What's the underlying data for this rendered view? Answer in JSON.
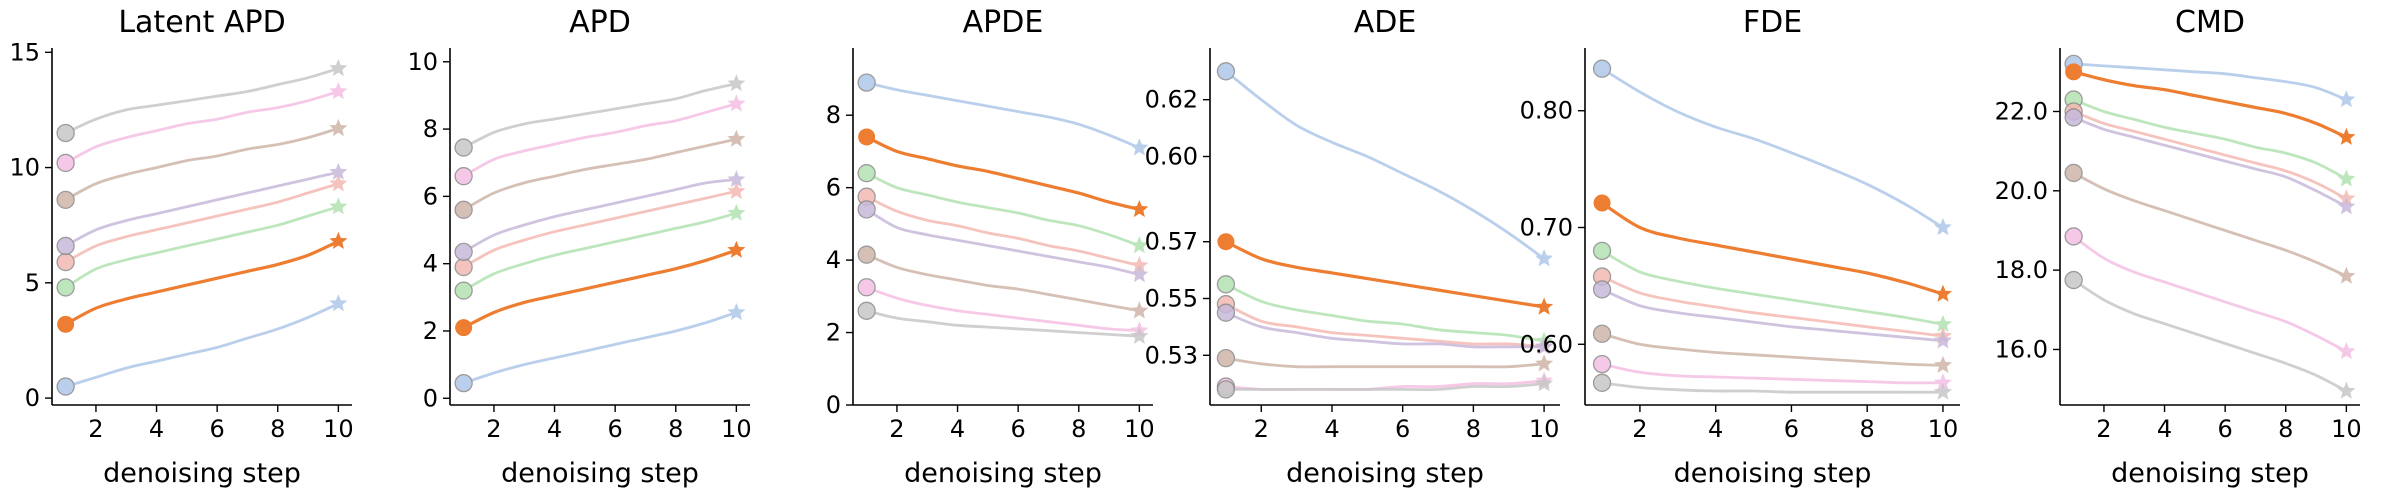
{
  "chart_data": [
    {
      "type": "line",
      "title": "Latent APD",
      "xlabel": "denoising step",
      "ylabel": "",
      "x": [
        1,
        2,
        3,
        4,
        5,
        6,
        7,
        8,
        9,
        10
      ],
      "xticks": [
        2,
        4,
        6,
        8,
        10
      ],
      "xtick_labels": [
        "2",
        "4",
        "6",
        "8",
        "10"
      ],
      "xlim": [
        0.55,
        10.45
      ],
      "ylim": [
        -0.3,
        15.1
      ],
      "yticks": [
        0,
        5,
        10,
        15
      ],
      "ytick_labels": [
        "0",
        "5",
        "10",
        "15"
      ],
      "series": [
        {
          "color": "#aec7e8",
          "highlight": false,
          "values": [
            0.5,
            0.9,
            1.3,
            1.6,
            1.9,
            2.2,
            2.6,
            3.0,
            3.5,
            4.1
          ]
        },
        {
          "color": "#ed7d31",
          "highlight": true,
          "values": [
            3.2,
            3.9,
            4.3,
            4.6,
            4.9,
            5.2,
            5.5,
            5.8,
            6.2,
            6.8
          ]
        },
        {
          "color": "#b2e2b2",
          "highlight": false,
          "values": [
            4.8,
            5.6,
            6.0,
            6.3,
            6.6,
            6.9,
            7.2,
            7.5,
            7.9,
            8.3
          ]
        },
        {
          "color": "#f4b9b2",
          "highlight": false,
          "values": [
            5.9,
            6.6,
            7.0,
            7.3,
            7.6,
            7.9,
            8.2,
            8.5,
            8.9,
            9.3
          ]
        },
        {
          "color": "#c7b9db",
          "highlight": false,
          "values": [
            6.6,
            7.3,
            7.7,
            8.0,
            8.3,
            8.6,
            8.9,
            9.2,
            9.5,
            9.8
          ]
        },
        {
          "color": "#cfb5a8",
          "highlight": false,
          "values": [
            8.6,
            9.3,
            9.7,
            10.0,
            10.3,
            10.5,
            10.8,
            11.0,
            11.3,
            11.7
          ]
        },
        {
          "color": "#f5bfe3",
          "highlight": false,
          "values": [
            10.2,
            10.9,
            11.3,
            11.6,
            11.9,
            12.1,
            12.4,
            12.6,
            12.9,
            13.3
          ]
        },
        {
          "color": "#c7c7c7",
          "highlight": false,
          "values": [
            11.5,
            12.1,
            12.5,
            12.7,
            12.9,
            13.1,
            13.3,
            13.6,
            13.9,
            14.3
          ]
        }
      ]
    },
    {
      "type": "line",
      "title": "APD",
      "xlabel": "denoising step",
      "ylabel": "",
      "x": [
        1,
        2,
        3,
        4,
        5,
        6,
        7,
        8,
        9,
        10
      ],
      "xticks": [
        2,
        4,
        6,
        8,
        10
      ],
      "xtick_labels": [
        "2",
        "4",
        "6",
        "8",
        "10"
      ],
      "xlim": [
        0.55,
        10.45
      ],
      "ylim": [
        -0.2,
        10.35
      ],
      "yticks": [
        0,
        2,
        4,
        6,
        8,
        10
      ],
      "ytick_labels": [
        "0",
        "2",
        "4",
        "6",
        "8",
        "10"
      ],
      "series": [
        {
          "color": "#aec7e8",
          "highlight": false,
          "values": [
            0.45,
            0.75,
            1.0,
            1.2,
            1.4,
            1.6,
            1.8,
            2.0,
            2.25,
            2.55
          ]
        },
        {
          "color": "#ed7d31",
          "highlight": true,
          "values": [
            2.1,
            2.55,
            2.85,
            3.05,
            3.25,
            3.45,
            3.65,
            3.85,
            4.1,
            4.4
          ]
        },
        {
          "color": "#b2e2b2",
          "highlight": false,
          "values": [
            3.2,
            3.7,
            4.0,
            4.25,
            4.45,
            4.65,
            4.85,
            5.05,
            5.25,
            5.5
          ]
        },
        {
          "color": "#f4b9b2",
          "highlight": false,
          "values": [
            3.9,
            4.4,
            4.7,
            4.95,
            5.15,
            5.35,
            5.55,
            5.75,
            5.95,
            6.15
          ]
        },
        {
          "color": "#c7b9db",
          "highlight": false,
          "values": [
            4.35,
            4.85,
            5.15,
            5.4,
            5.6,
            5.8,
            6.0,
            6.2,
            6.4,
            6.5
          ]
        },
        {
          "color": "#cfb5a8",
          "highlight": false,
          "values": [
            5.6,
            6.1,
            6.4,
            6.6,
            6.8,
            6.95,
            7.1,
            7.3,
            7.5,
            7.7
          ]
        },
        {
          "color": "#f5bfe3",
          "highlight": false,
          "values": [
            6.6,
            7.1,
            7.35,
            7.55,
            7.75,
            7.9,
            8.1,
            8.25,
            8.5,
            8.75
          ]
        },
        {
          "color": "#c7c7c7",
          "highlight": false,
          "values": [
            7.45,
            7.9,
            8.15,
            8.3,
            8.45,
            8.6,
            8.75,
            8.9,
            9.15,
            9.35
          ]
        }
      ]
    },
    {
      "type": "line",
      "title": "APDE",
      "xlabel": "denoising step",
      "ylabel": "",
      "x": [
        1,
        2,
        3,
        4,
        5,
        6,
        7,
        8,
        9,
        10
      ],
      "xticks": [
        2,
        4,
        6,
        8,
        10
      ],
      "xtick_labels": [
        "2",
        "4",
        "6",
        "8",
        "10"
      ],
      "xlim": [
        0.55,
        10.45
      ],
      "ylim": [
        0,
        9.8
      ],
      "yticks": [
        0,
        2,
        4,
        6,
        8
      ],
      "ytick_labels": [
        "0",
        "2",
        "4",
        "6",
        "8"
      ],
      "series": [
        {
          "color": "#aec7e8",
          "highlight": false,
          "values": [
            8.9,
            8.7,
            8.55,
            8.4,
            8.25,
            8.1,
            7.95,
            7.75,
            7.45,
            7.1
          ]
        },
        {
          "color": "#ed7d31",
          "highlight": true,
          "values": [
            7.4,
            7.0,
            6.8,
            6.6,
            6.45,
            6.25,
            6.05,
            5.85,
            5.6,
            5.4
          ]
        },
        {
          "color": "#b2e2b2",
          "highlight": false,
          "values": [
            6.4,
            6.0,
            5.8,
            5.6,
            5.45,
            5.3,
            5.1,
            4.95,
            4.7,
            4.4
          ]
        },
        {
          "color": "#f4b9b2",
          "highlight": false,
          "values": [
            5.75,
            5.35,
            5.1,
            4.95,
            4.75,
            4.6,
            4.4,
            4.25,
            4.05,
            3.85
          ]
        },
        {
          "color": "#c7b9db",
          "highlight": false,
          "values": [
            5.4,
            4.9,
            4.7,
            4.55,
            4.4,
            4.25,
            4.1,
            3.95,
            3.8,
            3.6
          ]
        },
        {
          "color": "#cfb5a8",
          "highlight": false,
          "values": [
            4.15,
            3.8,
            3.6,
            3.45,
            3.3,
            3.2,
            3.05,
            2.9,
            2.75,
            2.6
          ]
        },
        {
          "color": "#f5bfe3",
          "highlight": false,
          "values": [
            3.25,
            2.95,
            2.75,
            2.6,
            2.5,
            2.4,
            2.3,
            2.2,
            2.1,
            2.05
          ]
        },
        {
          "color": "#c7c7c7",
          "highlight": false,
          "values": [
            2.6,
            2.4,
            2.3,
            2.2,
            2.15,
            2.1,
            2.05,
            2.0,
            1.95,
            1.9
          ]
        }
      ]
    },
    {
      "type": "line",
      "title": "ADE",
      "xlabel": "denoising step",
      "ylabel": "",
      "x": [
        1,
        2,
        3,
        4,
        5,
        6,
        7,
        8,
        9,
        10
      ],
      "xticks": [
        2,
        4,
        6,
        8,
        10
      ],
      "xtick_labels": [
        "2",
        "4",
        "6",
        "8",
        "10"
      ],
      "xlim": [
        0.55,
        10.45
      ],
      "ylim": [
        0.5125,
        0.6375
      ],
      "yticks": [
        0.53,
        0.55,
        0.57,
        0.6,
        0.62
      ],
      "ytick_labels": [
        "0.53",
        "0.55",
        "0.57",
        "0.60",
        "0.62"
      ],
      "series": [
        {
          "color": "#aec7e8",
          "highlight": false,
          "values": [
            0.63,
            0.62,
            0.611,
            0.605,
            0.6,
            0.594,
            0.588,
            0.581,
            0.573,
            0.564
          ]
        },
        {
          "color": "#ed7d31",
          "highlight": true,
          "values": [
            0.57,
            0.564,
            0.561,
            0.559,
            0.557,
            0.555,
            0.553,
            0.551,
            0.549,
            0.547
          ]
        },
        {
          "color": "#b2e2b2",
          "highlight": false,
          "values": [
            0.555,
            0.549,
            0.546,
            0.544,
            0.542,
            0.541,
            0.539,
            0.538,
            0.537,
            0.535
          ]
        },
        {
          "color": "#f4b9b2",
          "highlight": false,
          "values": [
            0.548,
            0.542,
            0.54,
            0.538,
            0.537,
            0.536,
            0.535,
            0.534,
            0.534,
            0.533
          ]
        },
        {
          "color": "#c7b9db",
          "highlight": false,
          "values": [
            0.545,
            0.54,
            0.538,
            0.536,
            0.535,
            0.534,
            0.534,
            0.533,
            0.533,
            0.533
          ]
        },
        {
          "color": "#cfb5a8",
          "highlight": false,
          "values": [
            0.529,
            0.527,
            0.526,
            0.526,
            0.526,
            0.526,
            0.526,
            0.526,
            0.526,
            0.527
          ]
        },
        {
          "color": "#f5bfe3",
          "highlight": false,
          "values": [
            0.519,
            0.518,
            0.518,
            0.518,
            0.518,
            0.519,
            0.519,
            0.52,
            0.52,
            0.521
          ]
        },
        {
          "color": "#c7c7c7",
          "highlight": false,
          "values": [
            0.518,
            0.518,
            0.518,
            0.518,
            0.518,
            0.518,
            0.518,
            0.519,
            0.519,
            0.52
          ]
        }
      ]
    },
    {
      "type": "line",
      "title": "FDE",
      "xlabel": "denoising step",
      "ylabel": "",
      "x": [
        1,
        2,
        3,
        4,
        5,
        6,
        7,
        8,
        9,
        10
      ],
      "xticks": [
        2,
        4,
        6,
        8,
        10
      ],
      "xtick_labels": [
        "2",
        "4",
        "6",
        "8",
        "10"
      ],
      "xlim": [
        0.55,
        10.45
      ],
      "ylim": [
        0.548,
        0.852
      ],
      "yticks": [
        0.6,
        0.7,
        0.8
      ],
      "ytick_labels": [
        "0.60",
        "0.70",
        "0.80"
      ],
      "series": [
        {
          "color": "#aec7e8",
          "highlight": false,
          "values": [
            0.836,
            0.816,
            0.799,
            0.786,
            0.776,
            0.764,
            0.751,
            0.737,
            0.72,
            0.7
          ]
        },
        {
          "color": "#ed7d31",
          "highlight": true,
          "values": [
            0.721,
            0.7,
            0.691,
            0.685,
            0.679,
            0.673,
            0.667,
            0.661,
            0.653,
            0.643
          ]
        },
        {
          "color": "#b2e2b2",
          "highlight": false,
          "values": [
            0.68,
            0.662,
            0.654,
            0.648,
            0.643,
            0.638,
            0.633,
            0.628,
            0.623,
            0.617
          ]
        },
        {
          "color": "#f4b9b2",
          "highlight": false,
          "values": [
            0.658,
            0.644,
            0.637,
            0.632,
            0.627,
            0.623,
            0.619,
            0.615,
            0.611,
            0.607
          ]
        },
        {
          "color": "#c7b9db",
          "highlight": false,
          "values": [
            0.647,
            0.633,
            0.627,
            0.623,
            0.619,
            0.615,
            0.612,
            0.609,
            0.606,
            0.603
          ]
        },
        {
          "color": "#cfb5a8",
          "highlight": false,
          "values": [
            0.609,
            0.6,
            0.596,
            0.593,
            0.591,
            0.589,
            0.587,
            0.585,
            0.583,
            0.582
          ]
        },
        {
          "color": "#f5bfe3",
          "highlight": false,
          "values": [
            0.583,
            0.576,
            0.573,
            0.572,
            0.571,
            0.57,
            0.569,
            0.568,
            0.567,
            0.567
          ]
        },
        {
          "color": "#c7c7c7",
          "highlight": false,
          "values": [
            0.567,
            0.563,
            0.561,
            0.56,
            0.56,
            0.559,
            0.559,
            0.559,
            0.559,
            0.559
          ]
        }
      ]
    },
    {
      "type": "line",
      "title": "CMD",
      "xlabel": "denoising step",
      "ylabel": "",
      "x": [
        1,
        2,
        3,
        4,
        5,
        6,
        7,
        8,
        9,
        10
      ],
      "xticks": [
        2,
        4,
        6,
        8,
        10
      ],
      "xtick_labels": [
        "2",
        "4",
        "6",
        "8",
        "10"
      ],
      "xlim": [
        0.55,
        10.45
      ],
      "ylim": [
        14.6,
        23.55
      ],
      "yticks": [
        16,
        18,
        20,
        22
      ],
      "ytick_labels": [
        "16.0",
        "18.0",
        "20.0",
        "22.0"
      ],
      "series": [
        {
          "color": "#aec7e8",
          "highlight": false,
          "values": [
            23.2,
            23.15,
            23.1,
            23.05,
            23.0,
            22.95,
            22.85,
            22.75,
            22.6,
            22.3
          ]
        },
        {
          "color": "#ed7d31",
          "highlight": true,
          "values": [
            23.0,
            22.8,
            22.65,
            22.55,
            22.4,
            22.25,
            22.1,
            21.95,
            21.7,
            21.35
          ]
        },
        {
          "color": "#b2e2b2",
          "highlight": false,
          "values": [
            22.3,
            22.0,
            21.8,
            21.6,
            21.45,
            21.3,
            21.1,
            20.95,
            20.7,
            20.3
          ]
        },
        {
          "color": "#f4b9b2",
          "highlight": false,
          "values": [
            22.0,
            21.7,
            21.5,
            21.3,
            21.1,
            20.9,
            20.7,
            20.5,
            20.2,
            19.8
          ]
        },
        {
          "color": "#c7b9db",
          "highlight": false,
          "values": [
            21.85,
            21.55,
            21.35,
            21.15,
            20.95,
            20.75,
            20.55,
            20.35,
            20.0,
            19.6
          ]
        },
        {
          "color": "#cfb5a8",
          "highlight": false,
          "values": [
            20.45,
            20.05,
            19.75,
            19.5,
            19.25,
            19.0,
            18.75,
            18.5,
            18.2,
            17.85
          ]
        },
        {
          "color": "#f5bfe3",
          "highlight": false,
          "values": [
            18.85,
            18.3,
            17.95,
            17.7,
            17.45,
            17.2,
            16.95,
            16.7,
            16.35,
            15.95
          ]
        },
        {
          "color": "#c7c7c7",
          "highlight": false,
          "values": [
            17.75,
            17.25,
            16.9,
            16.65,
            16.4,
            16.15,
            15.9,
            15.65,
            15.35,
            14.95
          ]
        }
      ]
    }
  ]
}
